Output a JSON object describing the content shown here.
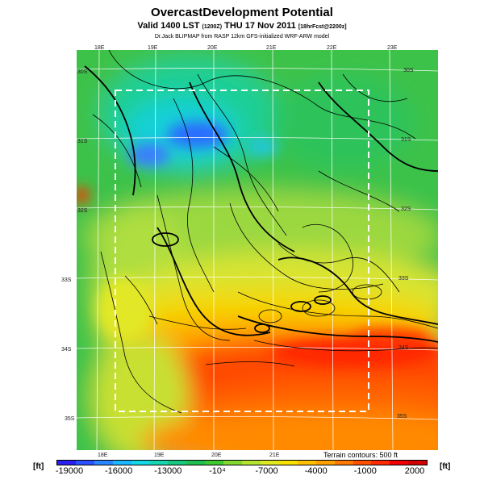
{
  "header": {
    "title": "OvercastDevelopment Potential",
    "valid_line_main": "Valid 1400 LST",
    "valid_line_paren": "(1200Z)",
    "valid_line_date": "THU 17 Nov 2011",
    "valid_line_fcst": "[18hrFcst@2200z]",
    "credit": "Dr.Jack BLIPMAP from RASP 12km GFS-initialized WRF-ARW model"
  },
  "map": {
    "lon_labels_top": [
      "18E",
      "19E",
      "20E",
      "21E",
      "22E",
      "23E"
    ],
    "lon_labels_bottom": [
      "18E",
      "19E",
      "20E",
      "21E"
    ],
    "lat_labels_left": [
      "30S",
      "31S",
      "32S",
      "33S",
      "34S",
      "35S"
    ],
    "lat_labels_right": [
      "30S",
      "31S",
      "32S",
      "33S",
      "34S",
      "35S"
    ],
    "terrain_note": "Terrain contours: 500 ft",
    "field_colors": {
      "deep_blue": "#2a5cff",
      "cyan": "#1ecfd6",
      "green": "#33c24a",
      "yellow_green": "#a8e040",
      "yellow": "#f0e000",
      "orange": "#ff8c00",
      "red": "#ff2a00"
    }
  },
  "colorbar": {
    "unit_left": "[ft]",
    "unit_right": "[ft]",
    "ticks": [
      "-19000",
      "-16000",
      "-13000",
      "-10⁴",
      "-7000",
      "-4000",
      "-1000",
      "2000"
    ],
    "colors": [
      "#2a1ff0",
      "#2a50ff",
      "#2a86ff",
      "#19b8ff",
      "#14d8e8",
      "#15d6b0",
      "#18c880",
      "#20c050",
      "#40c830",
      "#80d830",
      "#b4e430",
      "#e0e820",
      "#f8e000",
      "#ffc000",
      "#ffa000",
      "#ff7a00",
      "#ff5000",
      "#ff2a00",
      "#f00000",
      "#d00000"
    ]
  }
}
